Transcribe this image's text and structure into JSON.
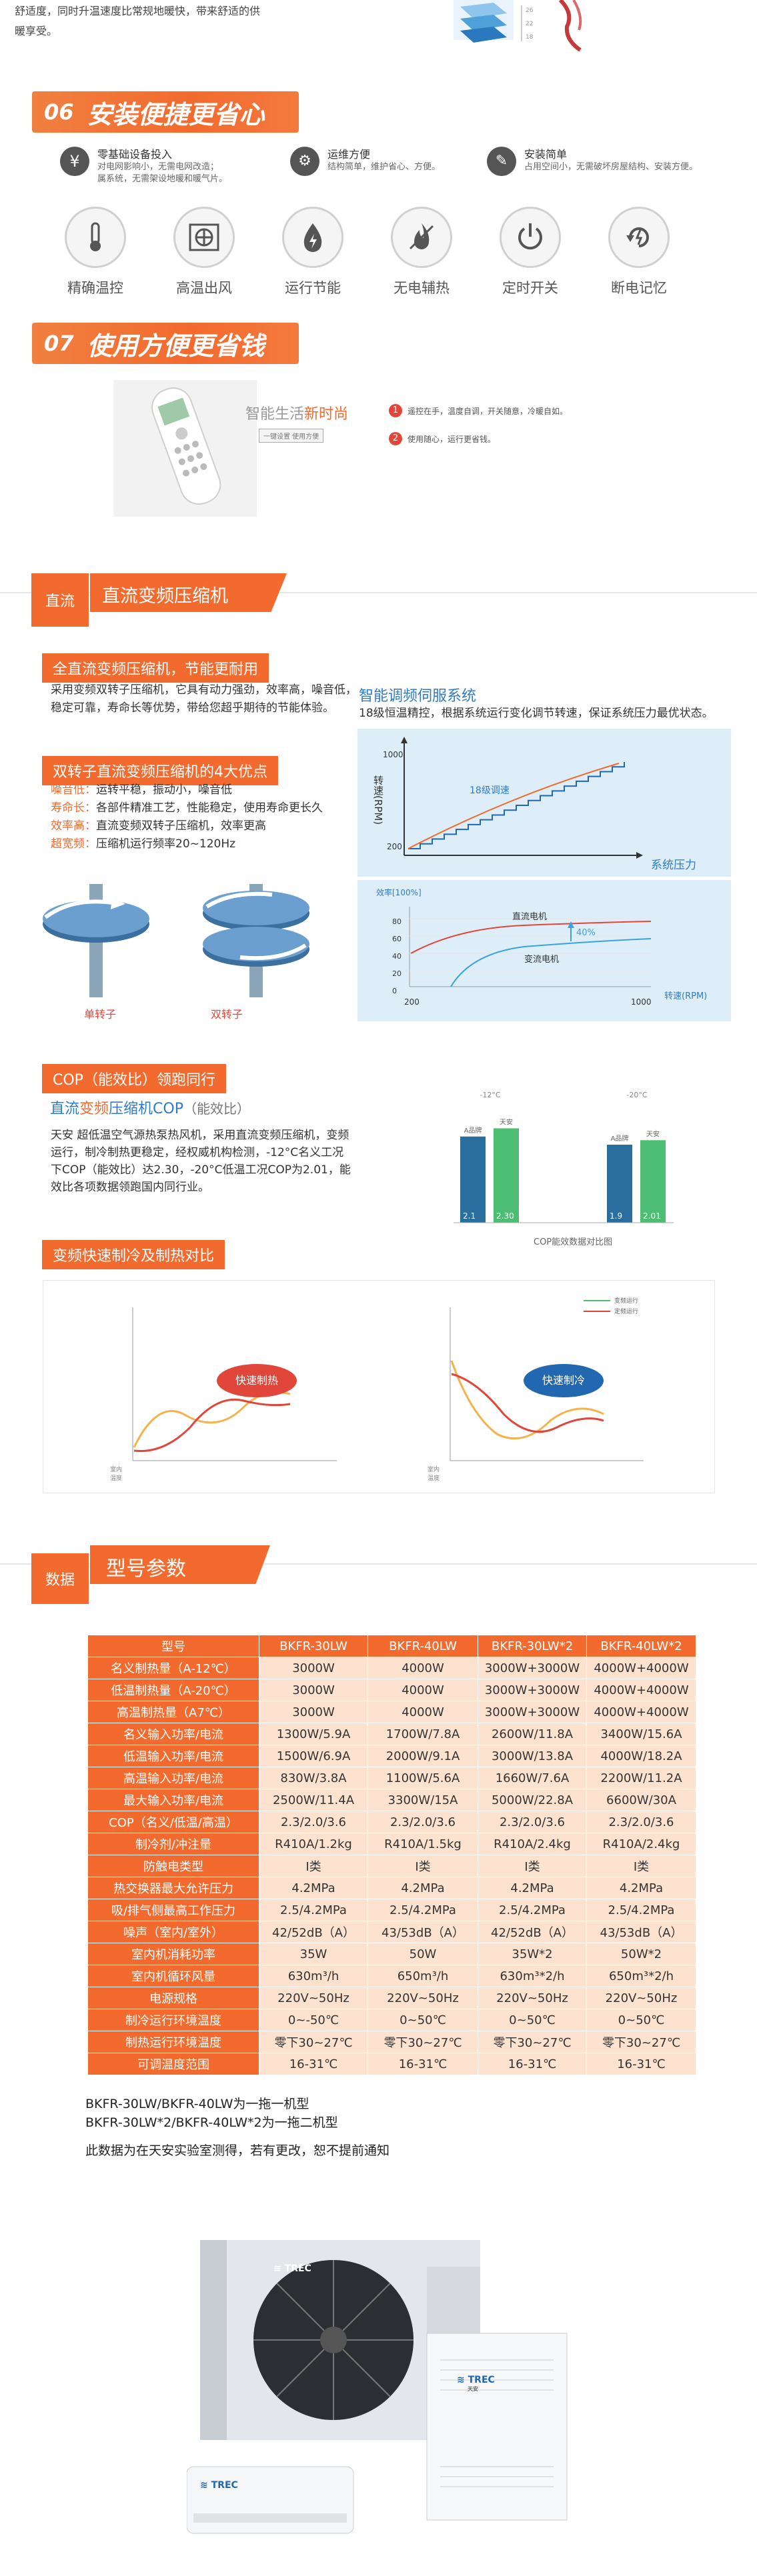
{
  "top": {
    "intro_line1": "舒适度，同时升温速度比常规地暖快，带来舒适的供",
    "intro_line2": "暖享受。",
    "mini_ticks": [
      "26",
      "22",
      "18"
    ]
  },
  "sec06": {
    "num": "06",
    "title": "安装便捷更省心",
    "features": [
      {
        "title": "零基础设备投入",
        "desc": "对电网影响小，无需电网改造；\n属系统，无需架设地暖和暖气片。"
      },
      {
        "title": "运维方便",
        "desc": "结构简单，维护省心、方便。"
      },
      {
        "title": "安装简单",
        "desc": "占用空间小，无需破坏房屋结构、安装方便。"
      }
    ],
    "icons": [
      {
        "label": "精确温控",
        "icon": "thermometer-icon"
      },
      {
        "label": "高温出风",
        "icon": "fan-icon"
      },
      {
        "label": "运行节能",
        "icon": "energy-drop-icon"
      },
      {
        "label": "无电辅热",
        "icon": "flame-icon"
      },
      {
        "label": "定时开关",
        "icon": "power-icon"
      },
      {
        "label": "断电记忆",
        "icon": "memory-icon"
      }
    ]
  },
  "sec07": {
    "num": "07",
    "title": "使用方便更省钱",
    "smart_title_grey": "智能生活",
    "smart_title_orange": "新时尚",
    "smart_caption": "一键设置  使用方便",
    "points": [
      {
        "n": "1",
        "text": "遥控在手，温度自调，开关随意，冷暖自如。"
      },
      {
        "n": "2",
        "text": "使用随心，运行更省钱。"
      }
    ]
  },
  "dc": {
    "side_label": "直流",
    "title": "直流变频压缩机",
    "tag1": "全直流变频压缩机，节能更耐用",
    "para1": "采用变频双转子压缩机，它具有动力强劲，效率高，噪音低，稳定可靠，寿命长等优势，带给您超乎期待的节能体验。",
    "tag2": "双转子直流变频压缩机的4大优点",
    "advantages": [
      {
        "k": "噪音低：",
        "v": "运转平稳，振动小，噪音低"
      },
      {
        "k": "寿命长：",
        "v": "各部件精准工艺，性能稳定，使用寿命更长久"
      },
      {
        "k": "效率高：",
        "v": "直流变频双转子压缩机，效率更高"
      },
      {
        "k": "超宽频：",
        "v": "压缩机运行频率20~120Hz"
      }
    ],
    "rotor_single": "单转子",
    "rotor_double": "双转子",
    "servo_title": "智能调频伺服系统",
    "servo_desc": "18级恒温精控，根据系统运行变化调节转速，保证系统压力最优状态。",
    "servo_chart": {
      "ylabel": "转速(RPM)",
      "xlabel": "系统压力",
      "y_top": "1000",
      "y_bottom": "200",
      "steps_label": "18级调速",
      "steps": 18
    },
    "eff_chart": {
      "ylabel": "效率[100%]",
      "xlabel": "转速(RPM)",
      "x_left": "200",
      "x_right": "1000",
      "yticks": [
        "80",
        "60",
        "40",
        "20",
        "0"
      ],
      "dc_label": "直流电机",
      "ac_label": "变流电机",
      "gain_label": "40%",
      "dc_color": "#e0463a",
      "ac_color": "#3aa3de"
    }
  },
  "cop": {
    "tag": "COP（能效比）领跑同行",
    "subtitle_a": "直流",
    "subtitle_b": "变频",
    "subtitle_c": "压缩机",
    "subtitle_d": "COP",
    "subtitle_e": "（能效比）",
    "para": "天安 超低温空气源热泵热风机，采用直流变频压缩机，变频运行，制冷制热更稳定，经权威机构检测，-12°C名义工况下COP（能效比）达2.30，-20°C低温工况COP为2.01，能效比各项数据领跑国内同行业。",
    "bar_caption": "COP能效数据对比图",
    "chart_data": [
      {
        "type": "bar",
        "condition": "-12°C",
        "categories": [
          "A品牌",
          "天安"
        ],
        "values": [
          2.1,
          2.3
        ],
        "colors": [
          "#2a6e9e",
          "#4dbd74"
        ]
      },
      {
        "type": "bar",
        "condition": "-20°C",
        "categories": [
          "A品牌",
          "天安"
        ],
        "values": [
          1.9,
          2.01
        ],
        "colors": [
          "#2a6e9e",
          "#4dbd74"
        ]
      }
    ],
    "bar_value_labels": [
      "2.1",
      "2.30",
      "1.9",
      "2.01"
    ]
  },
  "compare": {
    "tag": "变频快速制冷及制热对比",
    "legend": [
      "变频运行",
      "定频运行"
    ],
    "heat_bubble": "快速制热",
    "cool_bubble": "快速制冷",
    "axis_label": "室内\n温度"
  },
  "spec": {
    "side_label": "数据",
    "title": "型号参数",
    "headers": [
      "型号",
      "BKFR-30LW",
      "BKFR-40LW",
      "BKFR-30LW*2",
      "BKFR-40LW*2"
    ],
    "rows": [
      [
        "名义制热量（A-12℃）",
        "3000W",
        "4000W",
        "3000W+3000W",
        "4000W+4000W"
      ],
      [
        "低温制热量（A-20℃）",
        "3000W",
        "4000W",
        "3000W+3000W",
        "4000W+4000W"
      ],
      [
        "高温制热量（A7℃）",
        "3000W",
        "4000W",
        "3000W+3000W",
        "4000W+4000W"
      ],
      [
        "名义输入功率/电流",
        "1300W/5.9A",
        "1700W/7.8A",
        "2600W/11.8A",
        "3400W/15.6A"
      ],
      [
        "低温输入功率/电流",
        "1500W/6.9A",
        "2000W/9.1A",
        "3000W/13.8A",
        "4000W/18.2A"
      ],
      [
        "高温输入功率/电流",
        "830W/3.8A",
        "1100W/5.6A",
        "1660W/7.6A",
        "2200W/11.2A"
      ],
      [
        "最大输入功率/电流",
        "2500W/11.4A",
        "3300W/15A",
        "5000W/22.8A",
        "6600W/30A"
      ],
      [
        "COP（名义/低温/高温）",
        "2.3/2.0/3.6",
        "2.3/2.0/3.6",
        "2.3/2.0/3.6",
        "2.3/2.0/3.6"
      ],
      [
        "制冷剂/冲注量",
        "R410A/1.2kg",
        "R410A/1.5kg",
        "R410A/2.4kg",
        "R410A/2.4kg"
      ],
      [
        "防触电类型",
        "I类",
        "I类",
        "I类",
        "I类"
      ],
      [
        "热交换器最大允许压力",
        "4.2MPa",
        "4.2MPa",
        "4.2MPa",
        "4.2MPa"
      ],
      [
        "吸/排气侧最高工作压力",
        "2.5/4.2MPa",
        "2.5/4.2MPa",
        "2.5/4.2MPa",
        "2.5/4.2MPa"
      ],
      [
        "噪声（室内/室外）",
        "42/52dB（A）",
        "43/53dB（A）",
        "42/52dB（A）",
        "43/53dB（A）"
      ],
      [
        "室内机消耗功率",
        "35W",
        "50W",
        "35W*2",
        "50W*2"
      ],
      [
        "室内机循环风量",
        "630m³/h",
        "650m³/h",
        "630m³*2/h",
        "650m³*2/h"
      ],
      [
        "电源规格",
        "220V~50Hz",
        "220V~50Hz",
        "220V~50Hz",
        "220V~50Hz"
      ],
      [
        "制冷运行环境温度",
        "0~-50℃",
        "0~50℃",
        "0~50℃",
        "0~50℃"
      ],
      [
        "制热运行环境温度",
        "零下30~27℃",
        "零下30~27℃",
        "零下30~27℃",
        "零下30~27℃"
      ],
      [
        "可调温度范围",
        "16-31℃",
        "16-31℃",
        "16-31℃",
        "16-31℃"
      ]
    ],
    "note1": "BKFR-30LW/BKFR-40LW为一拖一机型",
    "note2": "BKFR-30LW*2/BKFR-40LW*2为一拖二机型",
    "note3": "此数据为在天安实验室测得，若有更改，恕不提前通知"
  },
  "product": {
    "brand": "TREC",
    "brand_sub": "天安"
  }
}
